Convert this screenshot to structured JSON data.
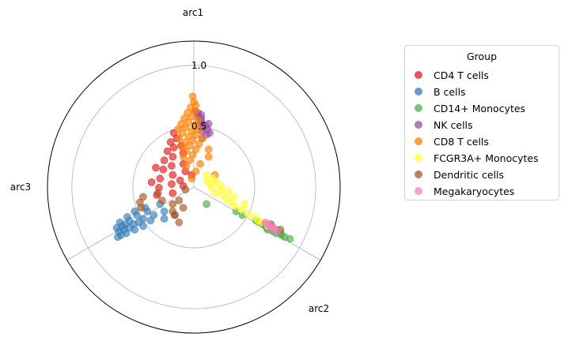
{
  "chart_data": {
    "type": "scatter",
    "projection": "ternary polar (three arcs at 90°, 330°, 210°)",
    "axes": [
      "arc1",
      "arc2",
      "arc3"
    ],
    "rlim": [
      0,
      1.2
    ],
    "rticks": [
      "0.5",
      "1.0"
    ],
    "grid": true,
    "legend": {
      "title": "Group",
      "placement": "outside-right"
    },
    "series": [
      {
        "name": "CD4 T cells",
        "color": "#e41a1c",
        "points": [
          [
            0.35,
            0.22,
            0.43
          ],
          [
            0.4,
            0.2,
            0.4
          ],
          [
            0.45,
            0.17,
            0.38
          ],
          [
            0.5,
            0.15,
            0.35
          ],
          [
            0.55,
            0.13,
            0.32
          ],
          [
            0.6,
            0.12,
            0.28
          ],
          [
            0.38,
            0.15,
            0.47
          ],
          [
            0.43,
            0.14,
            0.43
          ],
          [
            0.48,
            0.12,
            0.4
          ],
          [
            0.53,
            0.11,
            0.36
          ],
          [
            0.58,
            0.1,
            0.32
          ],
          [
            0.63,
            0.09,
            0.28
          ],
          [
            0.33,
            0.17,
            0.5
          ],
          [
            0.37,
            0.25,
            0.38
          ],
          [
            0.42,
            0.25,
            0.33
          ],
          [
            0.3,
            0.25,
            0.45
          ],
          [
            0.46,
            0.22,
            0.32
          ],
          [
            0.52,
            0.19,
            0.29
          ],
          [
            0.29,
            0.18,
            0.53
          ],
          [
            0.34,
            0.28,
            0.38
          ],
          [
            0.4,
            0.29,
            0.31
          ],
          [
            0.56,
            0.16,
            0.28
          ],
          [
            0.44,
            0.1,
            0.46
          ],
          [
            0.36,
            0.12,
            0.52
          ]
        ]
      },
      {
        "name": "B cells",
        "color": "#377eb8",
        "points": [
          [
            0.12,
            0.1,
            0.78
          ],
          [
            0.1,
            0.12,
            0.78
          ],
          [
            0.14,
            0.08,
            0.78
          ],
          [
            0.08,
            0.14,
            0.78
          ],
          [
            0.15,
            0.12,
            0.73
          ],
          [
            0.13,
            0.15,
            0.72
          ],
          [
            0.1,
            0.17,
            0.73
          ],
          [
            0.17,
            0.1,
            0.73
          ],
          [
            0.18,
            0.14,
            0.68
          ],
          [
            0.16,
            0.18,
            0.66
          ],
          [
            0.12,
            0.2,
            0.68
          ],
          [
            0.2,
            0.12,
            0.68
          ],
          [
            0.09,
            0.1,
            0.81
          ],
          [
            0.11,
            0.08,
            0.81
          ],
          [
            0.07,
            0.12,
            0.81
          ],
          [
            0.14,
            0.17,
            0.69
          ],
          [
            0.2,
            0.18,
            0.62
          ],
          [
            0.22,
            0.16,
            0.62
          ],
          [
            0.18,
            0.22,
            0.6
          ],
          [
            0.16,
            0.28,
            0.56
          ],
          [
            0.24,
            0.22,
            0.54
          ],
          [
            0.2,
            0.26,
            0.54
          ],
          [
            0.15,
            0.22,
            0.63
          ],
          [
            0.11,
            0.14,
            0.75
          ],
          [
            0.06,
            0.11,
            0.83
          ],
          [
            0.13,
            0.11,
            0.76
          ]
        ]
      },
      {
        "name": "CD14+ Monocytes",
        "color": "#4daf4a",
        "points": [
          [
            0.12,
            0.78,
            0.1
          ],
          [
            0.1,
            0.82,
            0.08
          ],
          [
            0.09,
            0.85,
            0.06
          ],
          [
            0.13,
            0.76,
            0.11
          ],
          [
            0.1,
            0.8,
            0.1
          ],
          [
            0.08,
            0.87,
            0.05
          ],
          [
            0.14,
            0.74,
            0.12
          ],
          [
            0.11,
            0.79,
            0.1
          ],
          [
            0.07,
            0.88,
            0.05
          ],
          [
            0.09,
            0.83,
            0.08
          ],
          [
            0.12,
            0.8,
            0.08
          ],
          [
            0.11,
            0.82,
            0.07
          ],
          [
            0.15,
            0.72,
            0.13
          ],
          [
            0.18,
            0.64,
            0.18
          ],
          [
            0.2,
            0.6,
            0.2
          ],
          [
            0.06,
            0.9,
            0.04
          ],
          [
            0.05,
            0.93,
            0.02
          ],
          [
            0.08,
            0.85,
            0.07
          ],
          [
            0.13,
            0.77,
            0.1
          ],
          [
            0.1,
            0.84,
            0.06
          ],
          [
            0.24,
            0.44,
            0.32
          ]
        ]
      },
      {
        "name": "NK cells",
        "color": "#984ea3",
        "points": [
          [
            0.75,
            0.13,
            0.12
          ],
          [
            0.72,
            0.16,
            0.12
          ],
          [
            0.7,
            0.18,
            0.12
          ],
          [
            0.68,
            0.2,
            0.12
          ],
          [
            0.66,
            0.21,
            0.13
          ],
          [
            0.64,
            0.22,
            0.14
          ],
          [
            0.73,
            0.17,
            0.1
          ],
          [
            0.69,
            0.19,
            0.12
          ],
          [
            0.67,
            0.22,
            0.11
          ],
          [
            0.71,
            0.18,
            0.11
          ],
          [
            0.65,
            0.24,
            0.11
          ],
          [
            0.62,
            0.25,
            0.13
          ],
          [
            0.6,
            0.24,
            0.16
          ],
          [
            0.74,
            0.15,
            0.11
          ],
          [
            0.68,
            0.23,
            0.09
          ],
          [
            0.63,
            0.26,
            0.11
          ]
        ]
      },
      {
        "name": "CD8 T cells",
        "color": "#ff7f00",
        "points": [
          [
            0.65,
            0.1,
            0.25
          ],
          [
            0.68,
            0.1,
            0.22
          ],
          [
            0.71,
            0.1,
            0.19
          ],
          [
            0.74,
            0.1,
            0.16
          ],
          [
            0.77,
            0.1,
            0.13
          ],
          [
            0.8,
            0.1,
            0.1
          ],
          [
            0.6,
            0.13,
            0.27
          ],
          [
            0.63,
            0.13,
            0.24
          ],
          [
            0.66,
            0.13,
            0.21
          ],
          [
            0.69,
            0.13,
            0.18
          ],
          [
            0.72,
            0.13,
            0.15
          ],
          [
            0.75,
            0.13,
            0.12
          ],
          [
            0.55,
            0.17,
            0.28
          ],
          [
            0.58,
            0.17,
            0.25
          ],
          [
            0.61,
            0.17,
            0.22
          ],
          [
            0.64,
            0.17,
            0.19
          ],
          [
            0.67,
            0.17,
            0.16
          ],
          [
            0.7,
            0.17,
            0.13
          ],
          [
            0.5,
            0.2,
            0.3
          ],
          [
            0.53,
            0.2,
            0.27
          ],
          [
            0.56,
            0.2,
            0.24
          ],
          [
            0.59,
            0.2,
            0.21
          ],
          [
            0.62,
            0.2,
            0.18
          ],
          [
            0.65,
            0.2,
            0.15
          ],
          [
            0.45,
            0.24,
            0.31
          ],
          [
            0.48,
            0.24,
            0.28
          ],
          [
            0.51,
            0.24,
            0.25
          ],
          [
            0.54,
            0.24,
            0.22
          ],
          [
            0.57,
            0.24,
            0.19
          ],
          [
            0.6,
            0.24,
            0.16
          ],
          [
            0.42,
            0.3,
            0.28
          ],
          [
            0.46,
            0.3,
            0.24
          ],
          [
            0.5,
            0.32,
            0.18
          ],
          [
            0.54,
            0.3,
            0.16
          ],
          [
            0.38,
            0.3,
            0.32
          ],
          [
            0.83,
            0.08,
            0.09
          ],
          [
            0.78,
            0.12,
            0.1
          ],
          [
            0.4,
            0.4,
            0.2
          ]
        ]
      },
      {
        "name": "FCGR3A+ Monocytes",
        "color": "#ffff33",
        "points": [
          [
            0.35,
            0.4,
            0.25
          ],
          [
            0.33,
            0.42,
            0.25
          ],
          [
            0.36,
            0.43,
            0.21
          ],
          [
            0.3,
            0.45,
            0.25
          ],
          [
            0.32,
            0.47,
            0.21
          ],
          [
            0.34,
            0.46,
            0.2
          ],
          [
            0.29,
            0.49,
            0.22
          ],
          [
            0.27,
            0.52,
            0.21
          ],
          [
            0.25,
            0.55,
            0.2
          ],
          [
            0.23,
            0.58,
            0.19
          ],
          [
            0.21,
            0.62,
            0.17
          ],
          [
            0.19,
            0.66,
            0.15
          ],
          [
            0.17,
            0.7,
            0.13
          ],
          [
            0.15,
            0.73,
            0.12
          ],
          [
            0.38,
            0.4,
            0.22
          ],
          [
            0.37,
            0.38,
            0.25
          ],
          [
            0.4,
            0.36,
            0.24
          ],
          [
            0.31,
            0.51,
            0.18
          ],
          [
            0.28,
            0.55,
            0.17
          ],
          [
            0.24,
            0.62,
            0.14
          ],
          [
            0.14,
            0.75,
            0.11
          ],
          [
            0.12,
            0.79,
            0.09
          ]
        ]
      },
      {
        "name": "Dendritic cells",
        "color": "#a65628",
        "points": [
          [
            0.28,
            0.12,
            0.6
          ],
          [
            0.25,
            0.12,
            0.63
          ],
          [
            0.22,
            0.14,
            0.64
          ],
          [
            0.3,
            0.18,
            0.52
          ],
          [
            0.26,
            0.22,
            0.52
          ],
          [
            0.24,
            0.28,
            0.48
          ],
          [
            0.2,
            0.3,
            0.5
          ],
          [
            0.18,
            0.32,
            0.5
          ],
          [
            0.22,
            0.34,
            0.44
          ],
          [
            0.26,
            0.3,
            0.44
          ],
          [
            0.14,
            0.36,
            0.5
          ],
          [
            0.32,
            0.3,
            0.38
          ],
          [
            0.1,
            0.86,
            0.04
          ],
          [
            0.13,
            0.8,
            0.07
          ],
          [
            0.18,
            0.32,
            0.5
          ]
        ]
      },
      {
        "name": "Megakaryocytes",
        "color": "#f781bf",
        "points": [
          [
            0.13,
            0.78,
            0.09
          ],
          [
            0.11,
            0.81,
            0.08
          ],
          [
            0.1,
            0.83,
            0.07
          ],
          [
            0.12,
            0.8,
            0.08
          ],
          [
            0.09,
            0.85,
            0.06
          ],
          [
            0.14,
            0.77,
            0.09
          ],
          [
            0.11,
            0.82,
            0.07
          ]
        ]
      }
    ]
  }
}
